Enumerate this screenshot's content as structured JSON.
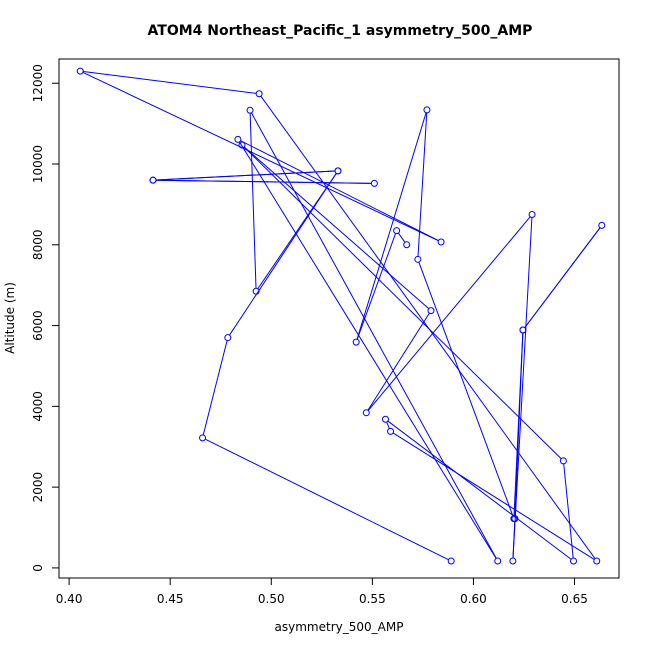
{
  "chart_data": {
    "type": "line",
    "title": "ATOM4 Northeast_Pacific_1 asymmetry_500_AMP",
    "xlabel": "asymmetry_500_AMP",
    "ylabel": "Altitude (m)",
    "xlim": [
      0.395,
      0.672
    ],
    "ylim": [
      -250,
      12600
    ],
    "xticks": [
      0.4,
      0.45,
      0.5,
      0.55,
      0.6,
      0.65
    ],
    "xtick_labels": [
      "0.40",
      "0.45",
      "0.50",
      "0.55",
      "0.60",
      "0.65"
    ],
    "yticks": [
      0,
      2000,
      4000,
      6000,
      8000,
      10000,
      12000
    ],
    "ytick_labels": [
      "0",
      "2000",
      "4000",
      "6000",
      "8000",
      "10000",
      "12000"
    ],
    "grid": false,
    "legend": "none",
    "series": [
      {
        "color": "#0000ff",
        "marker": "open-circle",
        "x": [
          0.589,
          0.466,
          0.4785,
          0.533,
          0.4415,
          0.551,
          0.4415,
          0.533,
          0.4925,
          0.4895,
          0.612,
          0.4835,
          0.584,
          0.4055,
          0.494,
          0.661,
          0.559,
          0.5565,
          0.6495,
          0.6445,
          0.4855,
          0.579,
          0.547,
          0.629,
          0.6195,
          0.6205,
          0.6245,
          0.6635,
          0.6245,
          0.62,
          0.5725,
          0.577,
          0.542,
          0.562,
          0.567
        ],
        "y": [
          170,
          3220,
          5700,
          9830,
          9600,
          9520,
          9600,
          9830,
          6850,
          11330,
          170,
          10610,
          8070,
          12300,
          11740,
          170,
          3380,
          3680,
          170,
          2650,
          10470,
          6370,
          3840,
          8750,
          170,
          1220,
          5890,
          8480,
          5890,
          1220,
          7640,
          11340,
          5590,
          8350,
          8000
        ]
      }
    ]
  }
}
